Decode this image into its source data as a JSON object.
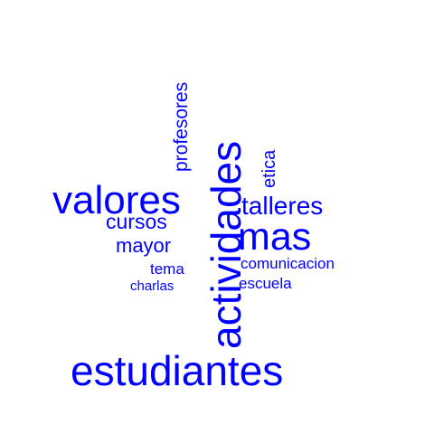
{
  "words": {
    "estudiantes": "estudiantes",
    "actividades": "actividades",
    "valores": "valores",
    "mas": "mas",
    "talleres": "talleres",
    "cursos": "cursos",
    "mayor": "mayor",
    "profesores": "profesores",
    "etica": "etica",
    "comunicacion": "comunicacion",
    "tema": "tema",
    "escuela": "escuela",
    "charlas": "charlas"
  },
  "colors": {
    "word": "#0000ff",
    "background": "#ffffff"
  }
}
